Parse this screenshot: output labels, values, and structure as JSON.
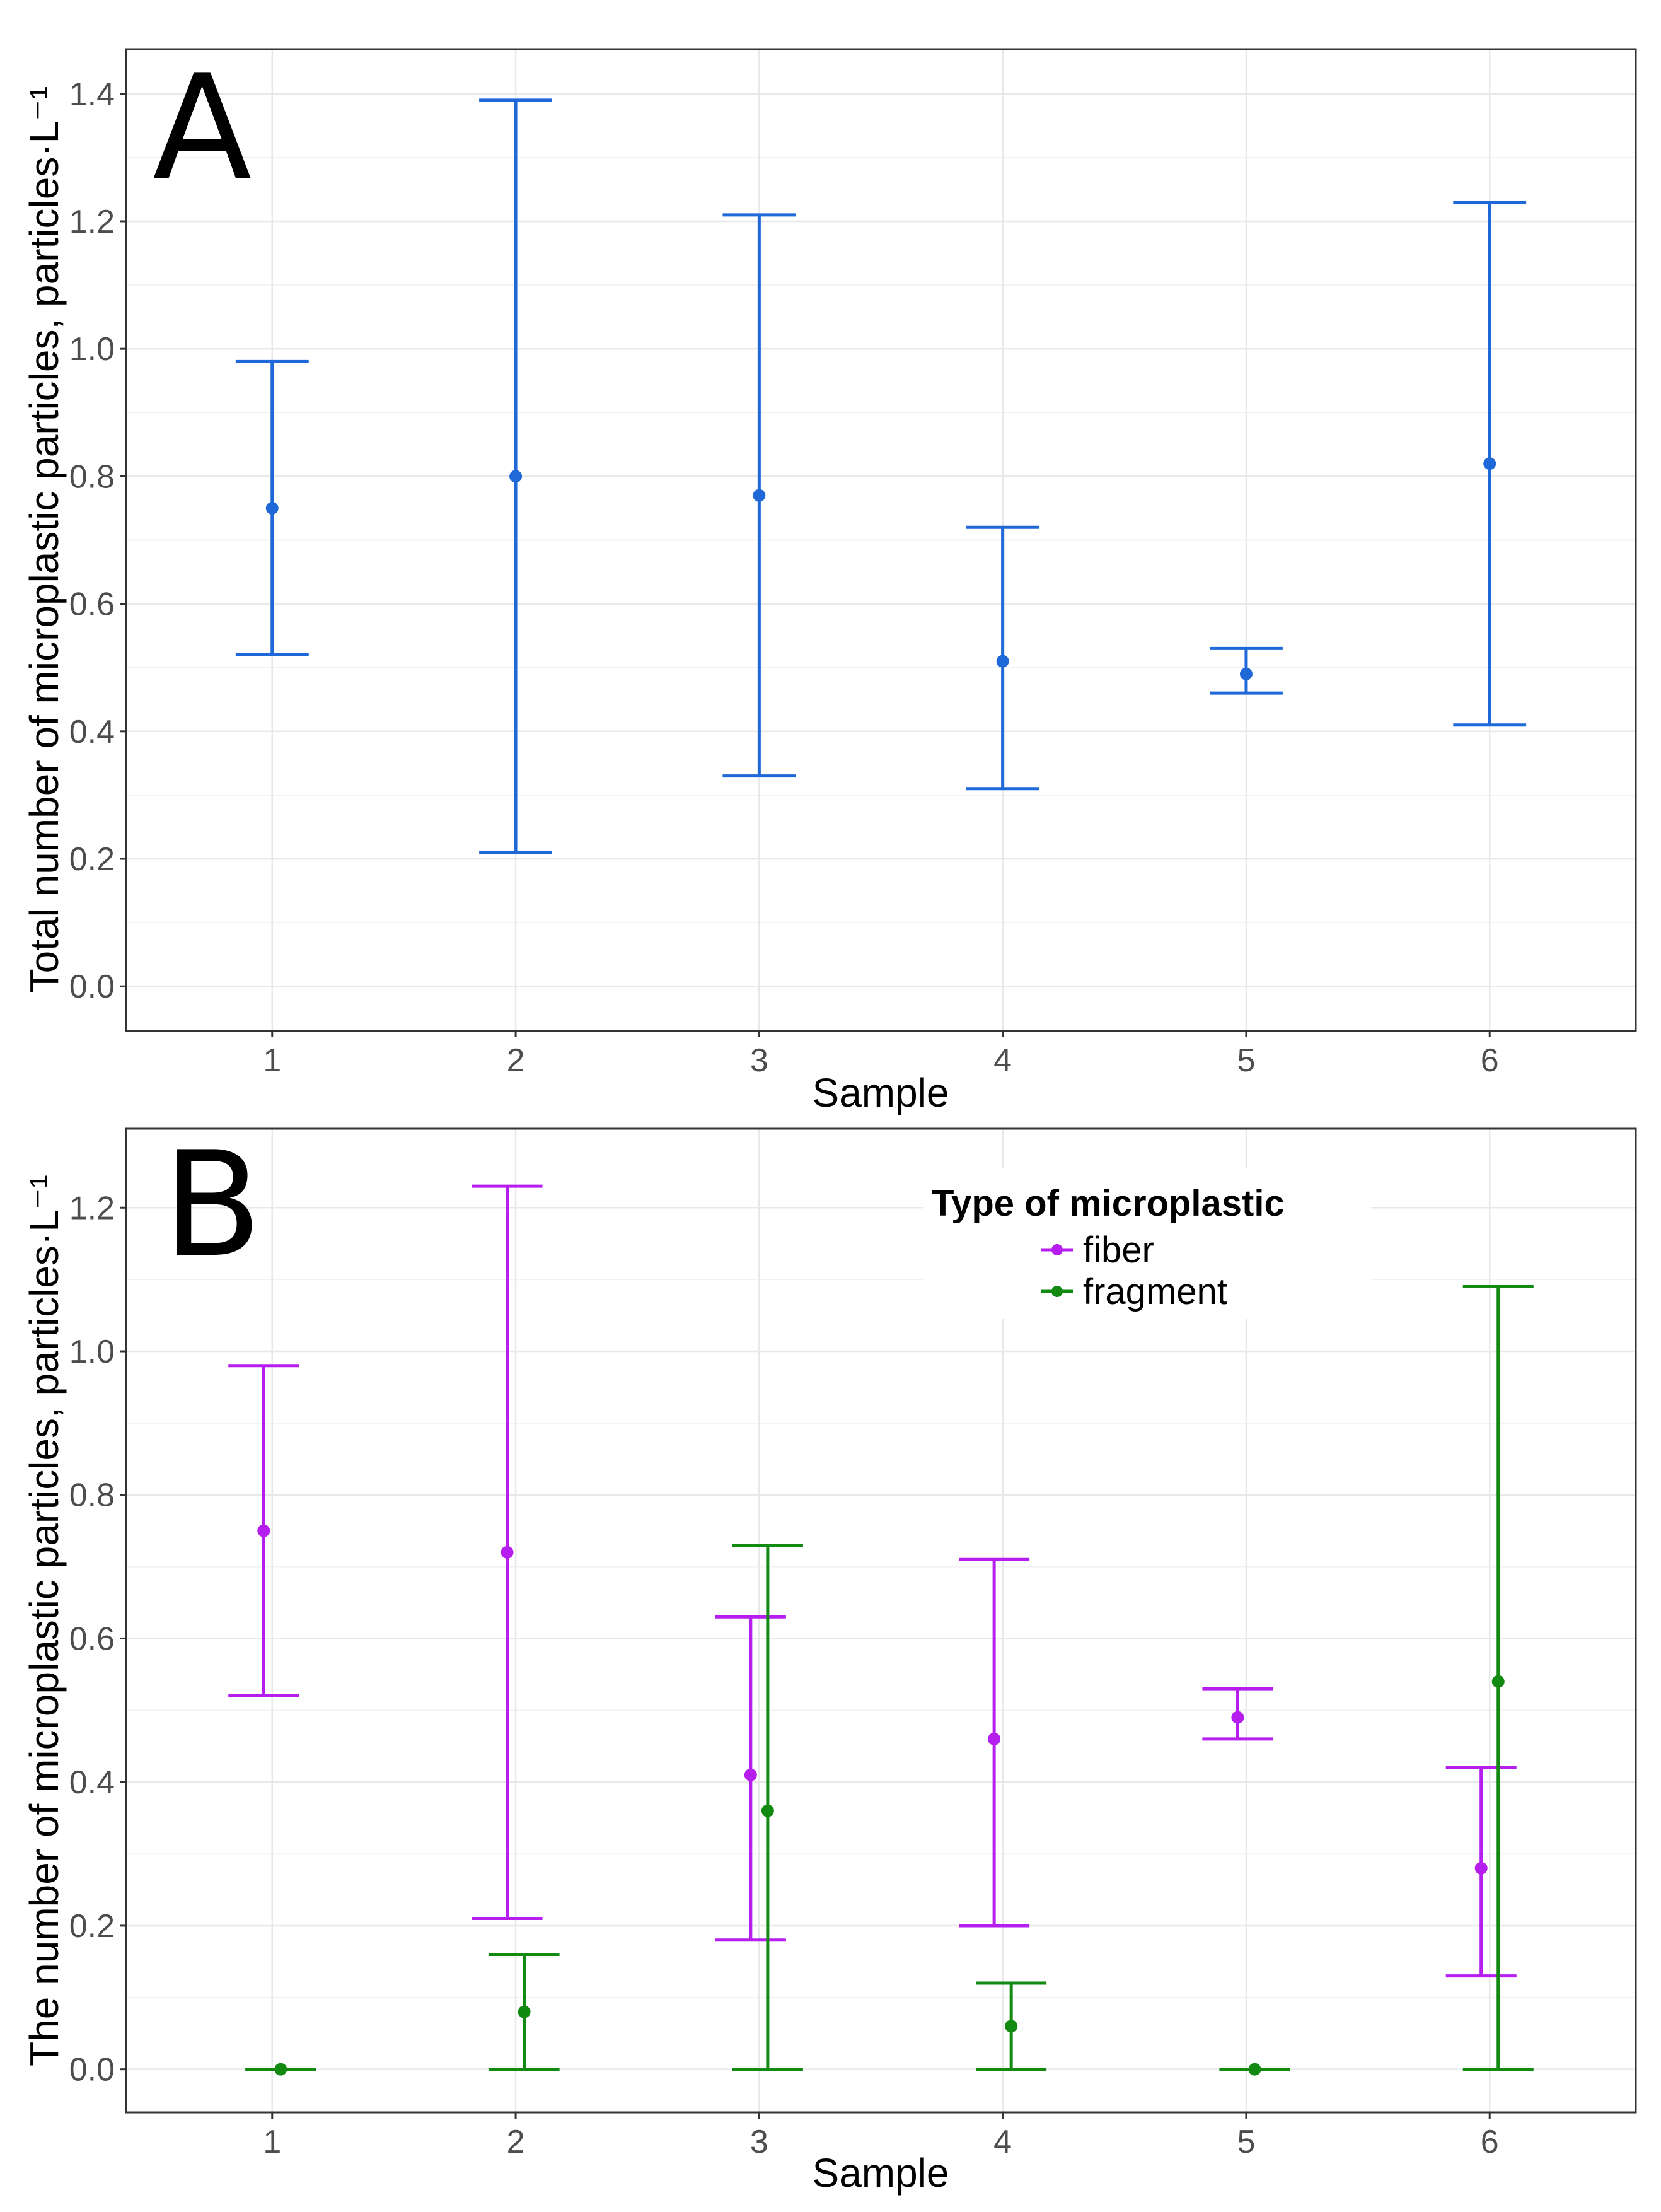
{
  "chart_data": [
    {
      "panel": "A",
      "type": "scatter",
      "error_bars": true,
      "xlabel": "Sample",
      "ylabel": "Total number of microplastic particles, particles·L⁻¹",
      "categories": [
        "1",
        "2",
        "3",
        "4",
        "5",
        "6"
      ],
      "yticks": [
        "0.0",
        "0.2",
        "0.4",
        "0.6",
        "0.8",
        "1.0",
        "1.2",
        "1.4"
      ],
      "ylim": [
        -0.07,
        1.47
      ],
      "grid": true,
      "series": [
        {
          "color": "#1f68d8",
          "values": [
            0.75,
            0.8,
            0.77,
            0.51,
            0.49,
            0.82
          ],
          "lower": [
            0.52,
            0.21,
            0.33,
            0.31,
            0.46,
            0.41
          ],
          "upper": [
            0.98,
            1.39,
            1.21,
            0.72,
            0.53,
            1.23
          ]
        }
      ]
    },
    {
      "panel": "B",
      "type": "scatter",
      "error_bars": true,
      "xlabel": "Sample",
      "ylabel": "The number of microplastic particles, particles·L⁻¹",
      "categories": [
        "1",
        "2",
        "3",
        "4",
        "5",
        "6"
      ],
      "yticks": [
        "0.0",
        "0.2",
        "0.4",
        "0.6",
        "0.8",
        "1.0",
        "1.2"
      ],
      "ylim": [
        -0.06,
        1.31
      ],
      "grid": true,
      "legend": {
        "title": "Type of microplastic",
        "position": "top-right"
      },
      "series": [
        {
          "name": "fiber",
          "color": "#b61ef0",
          "values": [
            0.75,
            0.72,
            0.41,
            0.46,
            0.49,
            0.28
          ],
          "lower": [
            0.52,
            0.21,
            0.18,
            0.2,
            0.46,
            0.13
          ],
          "upper": [
            0.98,
            1.23,
            0.63,
            0.71,
            0.53,
            0.42
          ]
        },
        {
          "name": "fragment",
          "color": "#128a12",
          "values": [
            0.0,
            0.08,
            0.36,
            0.06,
            0.0,
            0.54
          ],
          "lower": [
            0.0,
            0.0,
            0.0,
            0.0,
            0.0,
            0.0
          ],
          "upper": [
            0.0,
            0.16,
            0.73,
            0.12,
            0.0,
            1.09
          ]
        }
      ]
    }
  ]
}
